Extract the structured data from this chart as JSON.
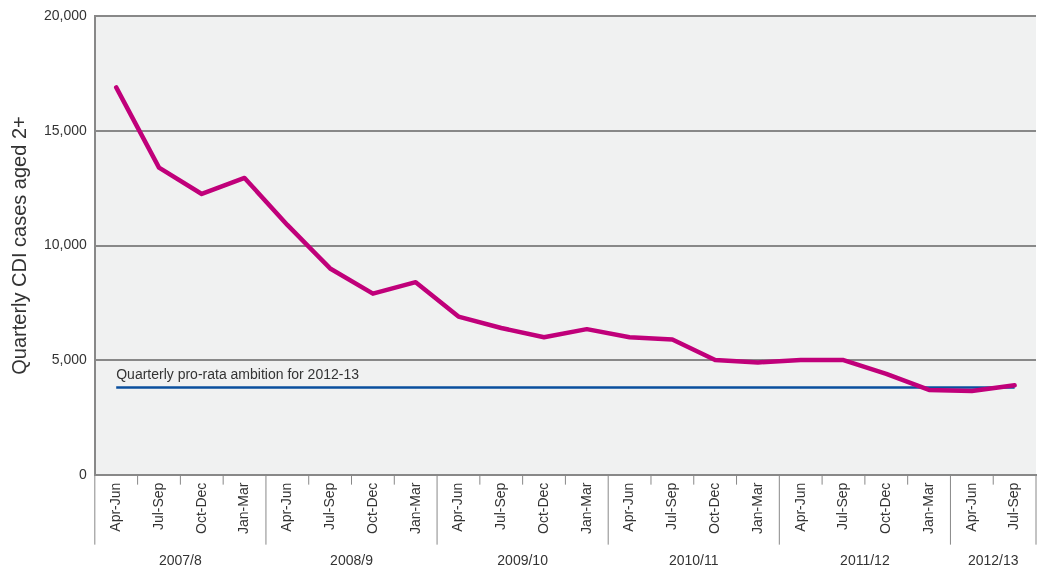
{
  "chart_data": {
    "type": "line",
    "ylabel": "Quarterly CDI cases aged 2+",
    "categories": [
      "Apr-Jun",
      "Jul-Sep",
      "Oct-Dec",
      "Jan-Mar",
      "Apr-Jun",
      "Jul-Sep",
      "Oct-Dec",
      "Jan-Mar",
      "Apr-Jun",
      "Jul-Sep",
      "Oct-Dec",
      "Jan-Mar",
      "Apr-Jun",
      "Jul-Sep",
      "Oct-Dec",
      "Jan-Mar",
      "Apr-Jun",
      "Jul-Sep",
      "Oct-Dec",
      "Jan-Mar",
      "Apr-Jun",
      "Jul-Sep"
    ],
    "series": [
      {
        "color": "#c0007a",
        "values": [
          16900,
          13400,
          12250,
          12950,
          10900,
          9000,
          7900,
          8400,
          6900,
          6400,
          6000,
          6350,
          6000,
          5900,
          5000,
          4900,
          5000,
          5000,
          4400,
          3700,
          3650,
          3900
        ]
      }
    ],
    "ylim": [
      0,
      20000
    ],
    "yticks": [
      {
        "value": 0,
        "label": "0"
      },
      {
        "value": 5000,
        "label": "5,000"
      },
      {
        "value": 10000,
        "label": "10,000"
      },
      {
        "value": 15000,
        "label": "15,000"
      },
      {
        "value": 20000,
        "label": "20,000"
      }
    ],
    "grid": "y",
    "legend": false,
    "marker": "none",
    "line_style": "solid",
    "ref_lines": [
      {
        "axis": "y",
        "value": 3800,
        "label": "Quarterly pro-rata ambition for 2012-13",
        "color": "#0a4f9e"
      }
    ],
    "annotations": [
      "2007/8",
      "2008/9",
      "2009/10",
      "2010/11",
      "2011/12",
      "2012/13"
    ]
  }
}
